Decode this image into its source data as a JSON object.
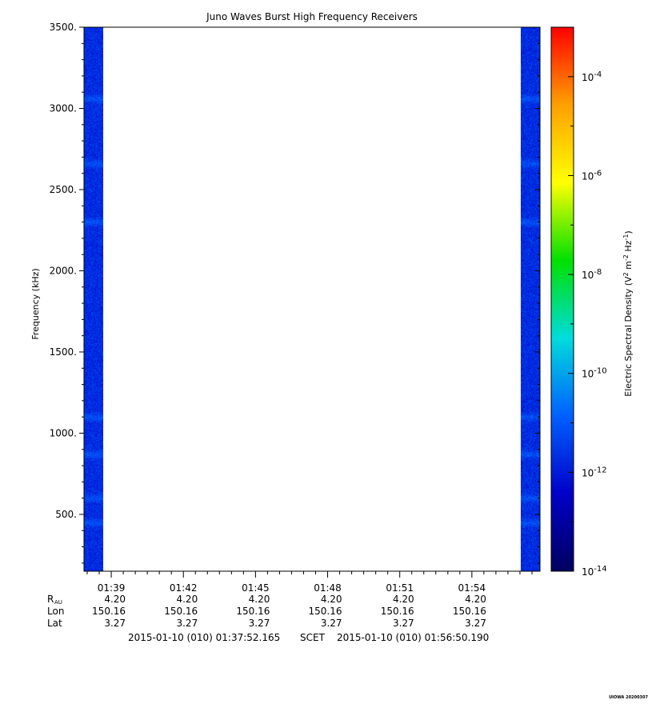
{
  "chart_data": {
    "type": "heatmap",
    "title": "Juno Waves Burst High Frequency Receivers",
    "ylabel": "Frequency (kHz)",
    "colorbar_label": "Electric Spectral Density (V² m⁻² Hz⁻¹)",
    "colorbar_label_parts": {
      "base": "Electric Spectral Density (V",
      "sup1": "2",
      "mid": " m",
      "sup2": "-2",
      "mid2": " Hz",
      "sup3": "-1",
      "end": ")"
    },
    "ylim": [
      150,
      3500
    ],
    "y_ticks": [
      {
        "value": 500,
        "label": "500."
      },
      {
        "value": 1000,
        "label": "1000."
      },
      {
        "value": 1500,
        "label": "1500."
      },
      {
        "value": 2000,
        "label": "2000."
      },
      {
        "value": 2500,
        "label": "2500."
      },
      {
        "value": 3000,
        "label": "3000."
      },
      {
        "value": 3500,
        "label": "3500."
      }
    ],
    "x_range": [
      "01:37:52",
      "01:56:50"
    ],
    "x_ticks": [
      "01:39",
      "01:42",
      "01:45",
      "01:48",
      "01:51",
      "01:54"
    ],
    "colorbar_range": [
      -14,
      -3
    ],
    "colorbar_scale": "log",
    "colorbar_ticks": [
      {
        "exp": -4,
        "base": "10",
        "sup": "-4"
      },
      {
        "exp": -6,
        "base": "10",
        "sup": "-6"
      },
      {
        "exp": -8,
        "base": "10",
        "sup": "-8"
      },
      {
        "exp": -10,
        "base": "10",
        "sup": "-10"
      },
      {
        "exp": -12,
        "base": "10",
        "sup": "-12"
      },
      {
        "exp": -14,
        "base": "10",
        "sup": "-14"
      }
    ],
    "colormap": [
      "#000060",
      "#0000c8",
      "#0060ff",
      "#00dcdc",
      "#00e000",
      "#ffff00",
      "#ffa000",
      "#ff0000"
    ],
    "data_blocks": [
      {
        "start": "01:37:52",
        "end": "01:38:40",
        "typical_density_exp": -11.7
      },
      {
        "start": "01:56:02",
        "end": "01:56:50",
        "typical_density_exp": -11.7
      }
    ],
    "enhanced_bands_khz": [
      3060,
      2660,
      2300,
      1100,
      870,
      600,
      450
    ]
  },
  "ephemeris": {
    "rows": [
      {
        "label": "R",
        "label_sub": "AU",
        "values": [
          "4.20",
          "4.20",
          "4.20",
          "4.20",
          "4.20",
          "4.20"
        ]
      },
      {
        "label": "Lon",
        "values": [
          "150.16",
          "150.16",
          "150.16",
          "150.16",
          "150.16",
          "150.16"
        ]
      },
      {
        "label": "Lat",
        "values": [
          "3.27",
          "3.27",
          "3.27",
          "3.27",
          "3.27",
          "3.27"
        ]
      }
    ]
  },
  "time_range": {
    "start": "2015-01-10 (010) 01:37:52.165",
    "scet": "SCET",
    "end": "2015-01-10 (010) 01:56:50.190"
  },
  "footer": "UIOWA 20200307"
}
